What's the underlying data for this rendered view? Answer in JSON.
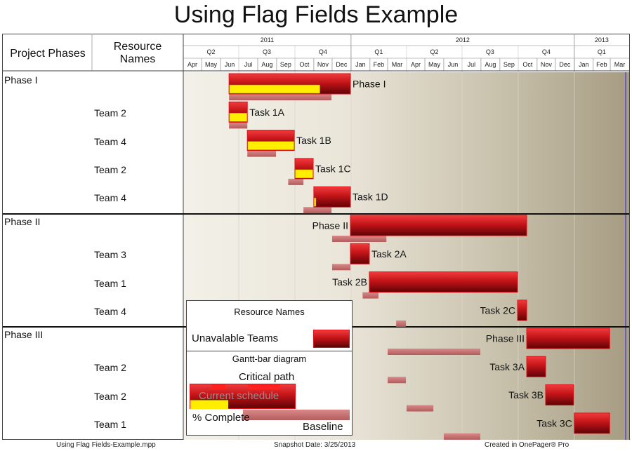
{
  "title": "Using Flag Fields Example",
  "header": {
    "phases_label": "Project Phases",
    "resource_label": "Resource Names"
  },
  "timescale": {
    "years": [
      {
        "label": "2011"
      },
      {
        "label": "2012"
      },
      {
        "label": "2013"
      }
    ],
    "quarters": [
      "Q2",
      "Q3",
      "Q4",
      "Q1",
      "Q2",
      "Q3",
      "Q4",
      "Q1"
    ],
    "months": [
      "Apr",
      "May",
      "Jun",
      "Jul",
      "Aug",
      "Sep",
      "Oct",
      "Nov",
      "Dec",
      "Jan",
      "Feb",
      "Mar",
      "Apr",
      "May",
      "Jun",
      "Jul",
      "Aug",
      "Sep",
      "Oct",
      "Nov",
      "Dec",
      "Jan",
      "Feb",
      "Mar"
    ]
  },
  "phases": [
    {
      "name": "Phase I",
      "rows": [
        {
          "resource": "",
          "task": "Phase I",
          "start": "2011-06-15",
          "end": "2011-12-31",
          "complete": 0.75,
          "baseline_start": "2011-06-15",
          "baseline_end": "2011-11-30",
          "label_side": "right"
        },
        {
          "resource": "Team 2",
          "task": "Task 1A",
          "start": "2011-06-15",
          "end": "2011-07-15",
          "complete": 1.0,
          "baseline_start": "2011-06-15",
          "baseline_end": "2011-07-15",
          "label_side": "right"
        },
        {
          "resource": "Team 4",
          "task": "Task 1B",
          "start": "2011-07-15",
          "end": "2011-09-30",
          "complete": 1.0,
          "baseline_start": "2011-07-15",
          "baseline_end": "2011-08-31",
          "label_side": "right"
        },
        {
          "resource": "Team 2",
          "task": "Task 1C",
          "start": "2011-10-01",
          "end": "2011-10-31",
          "complete": 1.0,
          "baseline_start": "2011-09-20",
          "baseline_end": "2011-10-15",
          "label_side": "right"
        },
        {
          "resource": "Team 4",
          "task": "Task 1D",
          "start": "2011-11-01",
          "end": "2011-12-31",
          "complete": 0.05,
          "baseline_start": "2011-10-15",
          "baseline_end": "2011-11-30",
          "label_side": "right"
        }
      ]
    },
    {
      "name": "Phase II",
      "rows": [
        {
          "resource": "",
          "task": "Phase II",
          "start": "2011-12-31",
          "end": "2012-10-15",
          "complete": 0,
          "baseline_start": "2011-12-01",
          "baseline_end": "2012-02-28",
          "label_side": "left"
        },
        {
          "resource": "Team 3",
          "task": "Task 2A",
          "start": "2011-12-31",
          "end": "2012-01-31",
          "complete": 0,
          "baseline_start": "2011-12-01",
          "baseline_end": "2011-12-31",
          "label_side": "right"
        },
        {
          "resource": "Team 1",
          "task": "Task 2B",
          "start": "2012-01-31",
          "end": "2012-09-30",
          "complete": 0,
          "baseline_start": "2012-01-20",
          "baseline_end": "2012-02-15",
          "label_side": "left"
        },
        {
          "resource": "Team 4",
          "task": "Task 2C",
          "start": "2012-09-30",
          "end": "2012-10-15",
          "complete": 0,
          "baseline_start": "2012-03-15",
          "baseline_end": "2012-03-31",
          "label_side": "left"
        }
      ]
    },
    {
      "name": "Phase III",
      "rows": [
        {
          "resource": "",
          "task": "Phase III",
          "start": "2012-10-15",
          "end": "2013-02-28",
          "complete": 0,
          "baseline_start": "2012-03-01",
          "baseline_end": "2012-07-31",
          "label_side": "left"
        },
        {
          "resource": "Team 2",
          "task": "Task 3A",
          "start": "2012-10-15",
          "end": "2012-11-15",
          "complete": 0,
          "baseline_start": "2012-03-01",
          "baseline_end": "2012-03-31",
          "label_side": "left"
        },
        {
          "resource": "Team 2",
          "task": "Task 3B",
          "start": "2012-11-15",
          "end": "2012-12-31",
          "complete": 0,
          "baseline_start": "2012-04-01",
          "baseline_end": "2012-05-15",
          "label_side": "left"
        },
        {
          "resource": "Team 1",
          "task": "Task 3C",
          "start": "2013-01-01",
          "end": "2013-02-28",
          "complete": 0,
          "baseline_start": "2012-06-01",
          "baseline_end": "2012-07-31",
          "label_side": "left"
        }
      ]
    }
  ],
  "legend": {
    "resource_title": "Resource Names",
    "unavailable_label": "Unavalable Teams",
    "gantt_title": "Gantt-bar diagram",
    "critical_label": "Critical path",
    "current_label": "Current schedule",
    "complete_label": "% Complete",
    "baseline_label": "Baseline"
  },
  "footer": {
    "file": "Using Flag Fields-Example.mpp",
    "snapshot": "Snapshot Date: 3/25/2013",
    "created": "Created in OnePager® Pro"
  },
  "colors": {
    "bar_top": "#f0353a",
    "bar_bottom": "#6a0407",
    "complete": "#ffee00",
    "baseline": "#c97171",
    "grid_start": "#f2f0e8",
    "grid_end": "#a69c82",
    "today": "#5a4bd0"
  }
}
